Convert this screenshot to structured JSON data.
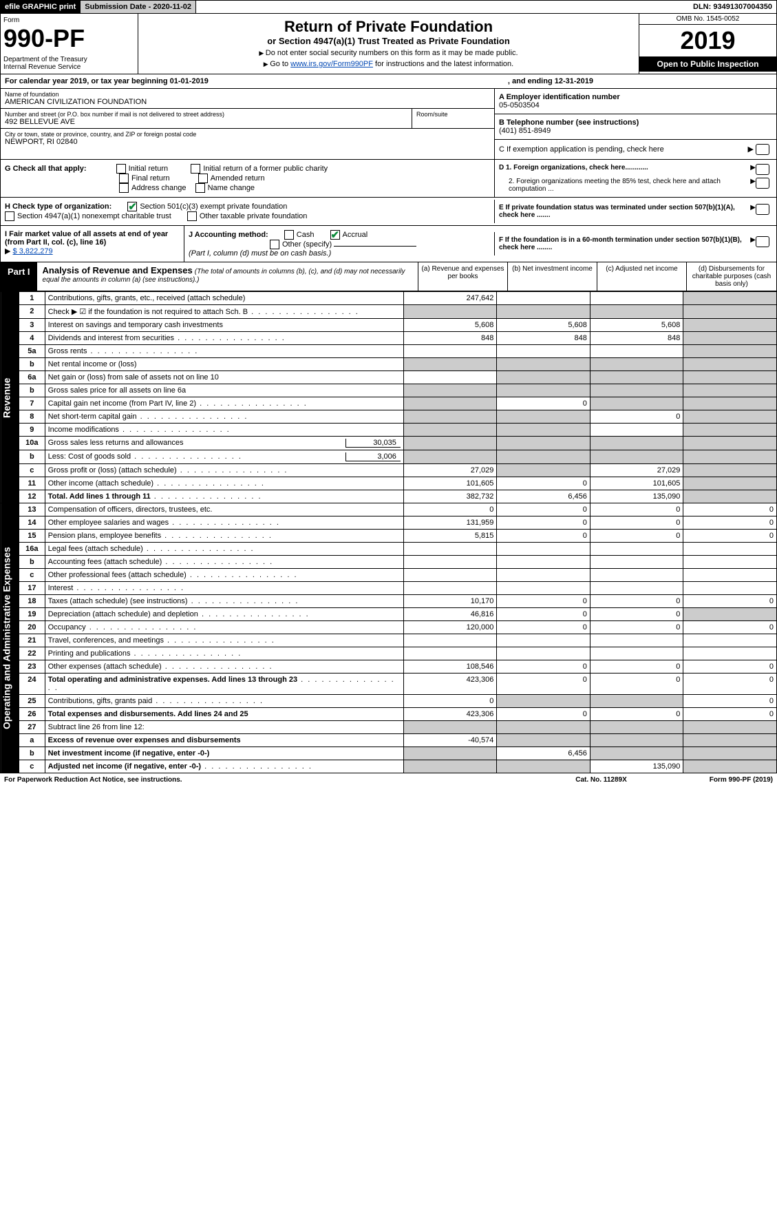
{
  "topbar": {
    "efile": "efile GRAPHIC print",
    "submission": "Submission Date - 2020-11-02",
    "dln": "DLN: 93491307004350"
  },
  "header": {
    "form_label": "Form",
    "form_no": "990-PF",
    "dept": "Department of the Treasury\nInternal Revenue Service",
    "title": "Return of Private Foundation",
    "subtitle": "or Section 4947(a)(1) Trust Treated as Private Foundation",
    "note1": "Do not enter social security numbers on this form as it may be made public.",
    "note2_pre": "Go to ",
    "note2_link": "www.irs.gov/Form990PF",
    "note2_post": " for instructions and the latest information.",
    "omb": "OMB No. 1545-0052",
    "year": "2019",
    "inspect": "Open to Public Inspection"
  },
  "cal_year": {
    "text": "For calendar year 2019, or tax year beginning 01-01-2019",
    "ending": ", and ending 12-31-2019"
  },
  "entity": {
    "name_lbl": "Name of foundation",
    "name": "AMERICAN CIVILIZATION FOUNDATION",
    "addr_lbl": "Number and street (or P.O. box number if mail is not delivered to street address)",
    "room_lbl": "Room/suite",
    "addr": "492 BELLEVUE AVE",
    "city_lbl": "City or town, state or province, country, and ZIP or foreign postal code",
    "city": "NEWPORT, RI  02840",
    "ein_lbl": "A Employer identification number",
    "ein": "05-0503504",
    "phone_lbl": "B Telephone number (see instructions)",
    "phone": "(401) 851-8949",
    "pending": "C If exemption application is pending, check here"
  },
  "checks": {
    "g_label": "G Check all that apply:",
    "initial": "Initial return",
    "initial_former": "Initial return of a former public charity",
    "final": "Final return",
    "amended": "Amended return",
    "addr_change": "Address change",
    "name_change": "Name change",
    "d1": "D 1. Foreign organizations, check here............",
    "d2": "2. Foreign organizations meeting the 85% test, check here and attach computation ...",
    "h_label": "H Check type of organization:",
    "h1": "Section 501(c)(3) exempt private foundation",
    "h2": "Section 4947(a)(1) nonexempt charitable trust",
    "h3": "Other taxable private foundation",
    "e_text": "E If private foundation status was terminated under section 507(b)(1)(A), check here .......",
    "i_label": "I Fair market value of all assets at end of year (from Part II, col. (c), line 16)",
    "i_val": "$  3,822,279",
    "j_label": "J Accounting method:",
    "j_cash": "Cash",
    "j_accrual": "Accrual",
    "j_other": "Other (specify)",
    "j_note": "(Part I, column (d) must be on cash basis.)",
    "f_text": "F  If the foundation is in a 60-month termination under section 507(b)(1)(B), check here ........"
  },
  "part1": {
    "tag": "Part I",
    "title": "Analysis of Revenue and Expenses",
    "subtitle": "(The total of amounts in columns (b), (c), and (d) may not necessarily equal the amounts in column (a) (see instructions).)",
    "col_a": "(a)   Revenue and expenses per books",
    "col_b": "(b)  Net investment income",
    "col_c": "(c)  Adjusted net income",
    "col_d": "(d)  Disbursements for charitable purposes (cash basis only)"
  },
  "side_revenue": "Revenue",
  "side_expenses": "Operating and Administrative Expenses",
  "rows": [
    {
      "n": "1",
      "lbl": "Contributions, gifts, grants, etc., received (attach schedule)",
      "a": "247,642",
      "b": "",
      "c": "",
      "d_shade": true
    },
    {
      "n": "2",
      "lbl": "Check ▶ ☑ if the foundation is not required to attach Sch. B",
      "a_shade": true,
      "b_shade": true,
      "c_shade": true,
      "d_shade": true,
      "dots": true
    },
    {
      "n": "3",
      "lbl": "Interest on savings and temporary cash investments",
      "a": "5,608",
      "b": "5,608",
      "c": "5,608",
      "d_shade": true
    },
    {
      "n": "4",
      "lbl": "Dividends and interest from securities",
      "a": "848",
      "b": "848",
      "c": "848",
      "d_shade": true,
      "dots": true
    },
    {
      "n": "5a",
      "lbl": "Gross rents",
      "a": "",
      "b": "",
      "c": "",
      "d_shade": true,
      "dots": true
    },
    {
      "n": "b",
      "lbl": "Net rental income or (loss)",
      "a_shade": true,
      "b_shade": true,
      "c_shade": true,
      "d_shade": true,
      "underline": true
    },
    {
      "n": "6a",
      "lbl": "Net gain or (loss) from sale of assets not on line 10",
      "a": "",
      "b_shade": true,
      "c_shade": true,
      "d_shade": true
    },
    {
      "n": "b",
      "lbl": "Gross sales price for all assets on line 6a",
      "a_shade": true,
      "b_shade": true,
      "c_shade": true,
      "d_shade": true,
      "underline": true
    },
    {
      "n": "7",
      "lbl": "Capital gain net income (from Part IV, line 2)",
      "a_shade": true,
      "b": "0",
      "c_shade": true,
      "d_shade": true,
      "dots": true
    },
    {
      "n": "8",
      "lbl": "Net short-term capital gain",
      "a_shade": true,
      "b_shade": true,
      "c": "0",
      "d_shade": true,
      "dots": true
    },
    {
      "n": "9",
      "lbl": "Income modifications",
      "a_shade": true,
      "b_shade": true,
      "c": "",
      "d_shade": true,
      "dots": true
    },
    {
      "n": "10a",
      "lbl": "Gross sales less returns and allowances",
      "mini": "30,035",
      "a_shade": true,
      "b_shade": true,
      "c_shade": true,
      "d_shade": true
    },
    {
      "n": "b",
      "lbl": "Less: Cost of goods sold",
      "mini": "3,006",
      "a_shade": true,
      "b_shade": true,
      "c_shade": true,
      "d_shade": true,
      "dots": true
    },
    {
      "n": "c",
      "lbl": "Gross profit or (loss) (attach schedule)",
      "a": "27,029",
      "b_shade": true,
      "c": "27,029",
      "d_shade": true,
      "dots": true
    },
    {
      "n": "11",
      "lbl": "Other income (attach schedule)",
      "a": "101,605",
      "b": "0",
      "c": "101,605",
      "d_shade": true,
      "dots": true
    },
    {
      "n": "12",
      "lbl": "Total. Add lines 1 through 11",
      "bold": true,
      "a": "382,732",
      "b": "6,456",
      "c": "135,090",
      "d_shade": true,
      "dots": true
    }
  ],
  "exp_rows": [
    {
      "n": "13",
      "lbl": "Compensation of officers, directors, trustees, etc.",
      "a": "0",
      "b": "0",
      "c": "0",
      "d": "0"
    },
    {
      "n": "14",
      "lbl": "Other employee salaries and wages",
      "a": "131,959",
      "b": "0",
      "c": "0",
      "d": "0",
      "dots": true
    },
    {
      "n": "15",
      "lbl": "Pension plans, employee benefits",
      "a": "5,815",
      "b": "0",
      "c": "0",
      "d": "0",
      "dots": true
    },
    {
      "n": "16a",
      "lbl": "Legal fees (attach schedule)",
      "a": "",
      "b": "",
      "c": "",
      "d": "",
      "dots": true
    },
    {
      "n": "b",
      "lbl": "Accounting fees (attach schedule)",
      "a": "",
      "b": "",
      "c": "",
      "d": "",
      "dots": true
    },
    {
      "n": "c",
      "lbl": "Other professional fees (attach schedule)",
      "a": "",
      "b": "",
      "c": "",
      "d": "",
      "dots": true
    },
    {
      "n": "17",
      "lbl": "Interest",
      "a": "",
      "b": "",
      "c": "",
      "d": "",
      "dots": true
    },
    {
      "n": "18",
      "lbl": "Taxes (attach schedule) (see instructions)",
      "a": "10,170",
      "b": "0",
      "c": "0",
      "d": "0",
      "dots": true
    },
    {
      "n": "19",
      "lbl": "Depreciation (attach schedule) and depletion",
      "a": "46,816",
      "b": "0",
      "c": "0",
      "d_shade": true,
      "dots": true
    },
    {
      "n": "20",
      "lbl": "Occupancy",
      "a": "120,000",
      "b": "0",
      "c": "0",
      "d": "0",
      "dots": true
    },
    {
      "n": "21",
      "lbl": "Travel, conferences, and meetings",
      "a": "",
      "b": "",
      "c": "",
      "d": "",
      "dots": true
    },
    {
      "n": "22",
      "lbl": "Printing and publications",
      "a": "",
      "b": "",
      "c": "",
      "d": "",
      "dots": true
    },
    {
      "n": "23",
      "lbl": "Other expenses (attach schedule)",
      "a": "108,546",
      "b": "0",
      "c": "0",
      "d": "0",
      "dots": true
    },
    {
      "n": "24",
      "lbl": "Total operating and administrative expenses. Add lines 13 through 23",
      "bold": true,
      "a": "423,306",
      "b": "0",
      "c": "0",
      "d": "0",
      "dots": true
    },
    {
      "n": "25",
      "lbl": "Contributions, gifts, grants paid",
      "a": "0",
      "b_shade": true,
      "c_shade": true,
      "d": "0",
      "dots": true
    },
    {
      "n": "26",
      "lbl": "Total expenses and disbursements. Add lines 24 and 25",
      "bold": true,
      "a": "423,306",
      "b": "0",
      "c": "0",
      "d": "0"
    },
    {
      "n": "27",
      "lbl": "Subtract line 26 from line 12:",
      "a_shade": true,
      "b_shade": true,
      "c_shade": true,
      "d_shade": true
    },
    {
      "n": "a",
      "lbl": "Excess of revenue over expenses and disbursements",
      "bold": true,
      "a": "-40,574",
      "b_shade": true,
      "c_shade": true,
      "d_shade": true
    },
    {
      "n": "b",
      "lbl": "Net investment income (if negative, enter -0-)",
      "bold": true,
      "a_shade": true,
      "b": "6,456",
      "c_shade": true,
      "d_shade": true
    },
    {
      "n": "c",
      "lbl": "Adjusted net income (if negative, enter -0-)",
      "bold": true,
      "a_shade": true,
      "b_shade": true,
      "c": "135,090",
      "d_shade": true,
      "dots": true
    }
  ],
  "footer": {
    "left": "For Paperwork Reduction Act Notice, see instructions.",
    "mid": "Cat. No. 11289X",
    "right": "Form 990-PF (2019)"
  }
}
